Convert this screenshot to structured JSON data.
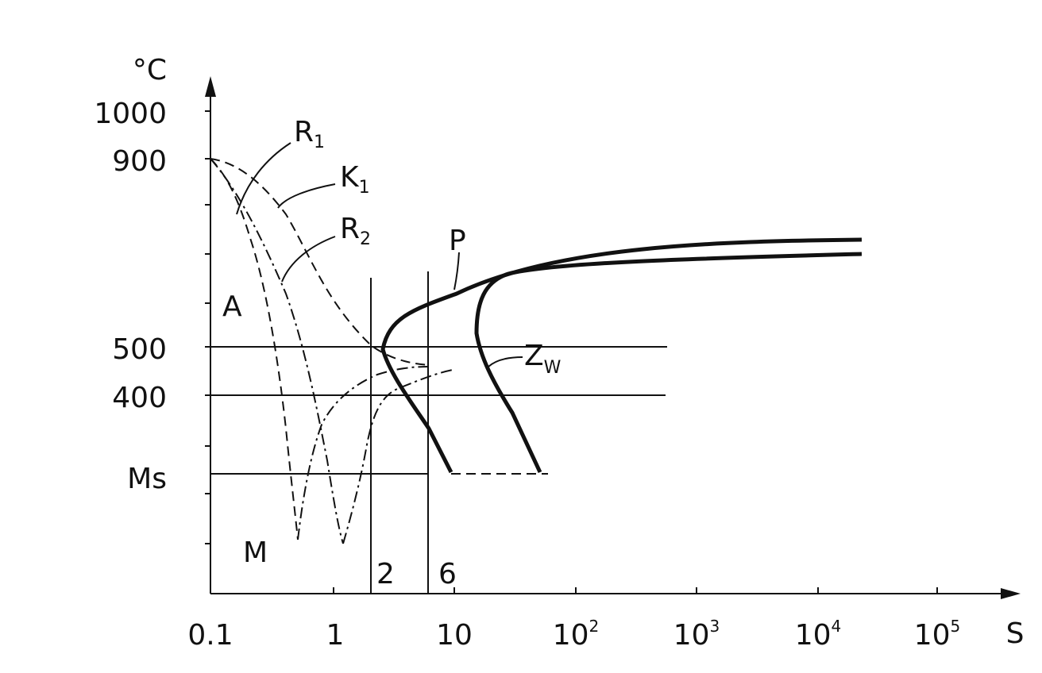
{
  "axes": {
    "y_unit": "°C",
    "x_unit": "S",
    "y_labels": [
      "1000",
      "900",
      "500",
      "400",
      "Ms"
    ],
    "x_labels": [
      {
        "base": "0.1"
      },
      {
        "base": "1"
      },
      {
        "base": "10"
      },
      {
        "base": "10",
        "exp": "2"
      },
      {
        "base": "10",
        "exp": "3"
      },
      {
        "base": "10",
        "exp": "4"
      },
      {
        "base": "10",
        "exp": "5"
      }
    ]
  },
  "regions": [
    "A",
    "M"
  ],
  "curves": [
    {
      "label": "R",
      "sub": "1"
    },
    {
      "label": "K",
      "sub": "1"
    },
    {
      "label": "R",
      "sub": "2"
    },
    {
      "label": "P"
    },
    {
      "label": "Z",
      "sub": "W"
    }
  ],
  "markers": [
    "2",
    "6"
  ]
}
